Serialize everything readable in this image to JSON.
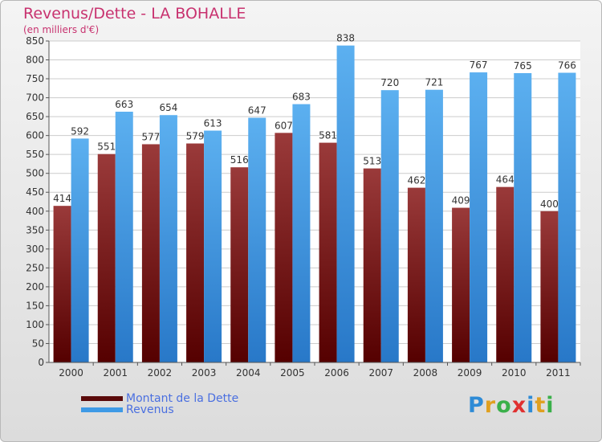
{
  "title": "Revenus/Dette - LA BOHALLE",
  "subtitle": "(en milliers d'€)",
  "logo_text": "Proxiti",
  "colors": {
    "dette": "#7a1c1c",
    "revenus": "#3e9ae6",
    "title": "#c8326f",
    "legend_text": "#4a6fe0"
  },
  "chart_data": {
    "type": "bar",
    "title": "Revenus/Dette - LA BOHALLE",
    "subtitle": "(en milliers d'€)",
    "categories": [
      "2000",
      "2001",
      "2002",
      "2003",
      "2004",
      "2005",
      "2006",
      "2007",
      "2008",
      "2009",
      "2010",
      "2011"
    ],
    "series": [
      {
        "name": "Montant de la Dette",
        "values": [
          414,
          551,
          577,
          579,
          516,
          607,
          581,
          513,
          462,
          409,
          464,
          400
        ]
      },
      {
        "name": "Revenus",
        "values": [
          592,
          663,
          654,
          613,
          647,
          683,
          838,
          720,
          721,
          767,
          765,
          766
        ]
      }
    ],
    "ylim": [
      0,
      850
    ],
    "yticks": [
      0,
      50,
      100,
      150,
      200,
      250,
      300,
      350,
      400,
      450,
      500,
      550,
      600,
      650,
      700,
      750,
      800,
      850
    ],
    "grid": true,
    "legend_position": "bottom-left"
  }
}
